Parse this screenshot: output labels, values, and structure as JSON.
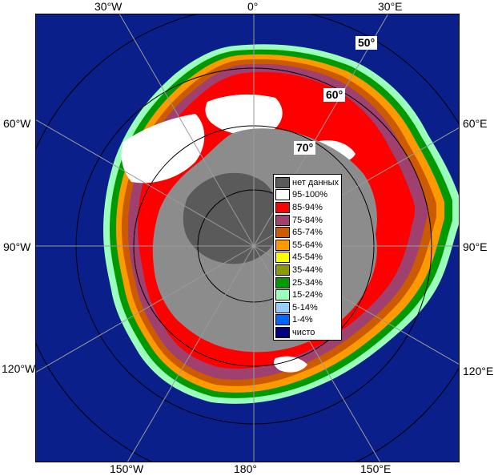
{
  "map": {
    "longitude_labels_top": [
      "30°W",
      "0°",
      "30°E"
    ],
    "longitude_labels_bottom": [
      "150°W",
      "180°",
      "150°E"
    ],
    "longitude_labels_left": [
      "60°W",
      "90°W",
      "120°W"
    ],
    "longitude_labels_right": [
      "60°E",
      "90°E",
      "120°E"
    ],
    "latitude_labels": [
      "50°",
      "60°",
      "70°"
    ],
    "colors": {
      "ocean": "#0a1f8a",
      "land": "#8c8c8c",
      "no_data": "#5a5a5a",
      "grid": "#9a9a9a",
      "circle": "#000000"
    }
  },
  "legend": {
    "items": [
      {
        "label": "нет данных",
        "color": "#5a5a5a"
      },
      {
        "label": "95-100%",
        "color": "#ffffff"
      },
      {
        "label": "85-94%",
        "color": "#ff0000"
      },
      {
        "label": "75-84%",
        "color": "#a0406e"
      },
      {
        "label": "65-74%",
        "color": "#cc5a00"
      },
      {
        "label": "55-64%",
        "color": "#ff9900"
      },
      {
        "label": "45-54%",
        "color": "#ffff00"
      },
      {
        "label": "35-44%",
        "color": "#8c9a00"
      },
      {
        "label": "25-34%",
        "color": "#009900"
      },
      {
        "label": "15-24%",
        "color": "#99ffbb"
      },
      {
        "label": "5-14%",
        "color": "#99ccff"
      },
      {
        "label": "1-4%",
        "color": "#0066ff"
      },
      {
        "label": "чисто",
        "color": "#000080"
      }
    ]
  }
}
